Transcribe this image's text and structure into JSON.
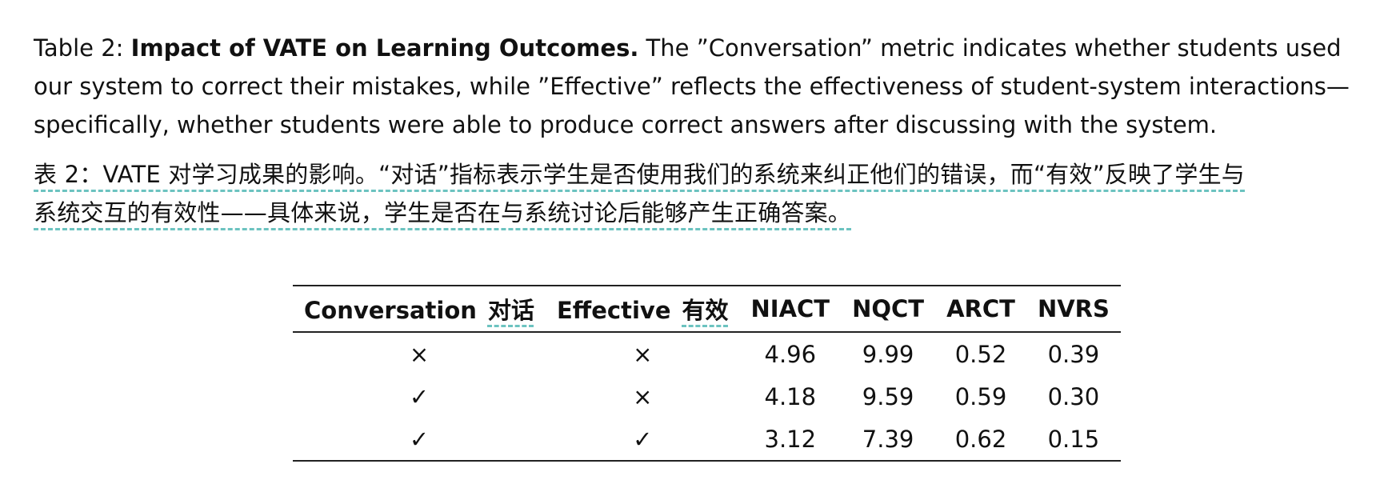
{
  "caption": {
    "label": "Table 2: ",
    "title": "Impact of VATE on Learning Outcomes.",
    "body": " The ”Conversation” metric indicates whether students used our system to correct their mistakes, while ”Effective” reflects the effectiveness of student-system interactions—specifically, whether students were able to produce correct answers after discussing with the system."
  },
  "translation": {
    "line1": "表 2：VATE 对学习成果的影响。“对话”指标表示学生是否使用我们的系统来纠正他们的错误，而“有效”反映了学生与",
    "line2": "系统交互的有效性——具体来说，学生是否在与系统讨论后能够产生正确答案。"
  },
  "table": {
    "headers": [
      {
        "en": "Conversation",
        "zh": "对话"
      },
      {
        "en": "Effective",
        "zh": "有效"
      },
      {
        "en": "NIACT"
      },
      {
        "en": "NQCT"
      },
      {
        "en": "ARCT"
      },
      {
        "en": "NVRS"
      }
    ],
    "rows": [
      [
        "×",
        "×",
        "4.96",
        "9.99",
        "0.52",
        "0.39"
      ],
      [
        "✓",
        "×",
        "4.18",
        "9.59",
        "0.59",
        "0.30"
      ],
      [
        "✓",
        "✓",
        "3.12",
        "7.39",
        "0.62",
        "0.15"
      ]
    ]
  }
}
